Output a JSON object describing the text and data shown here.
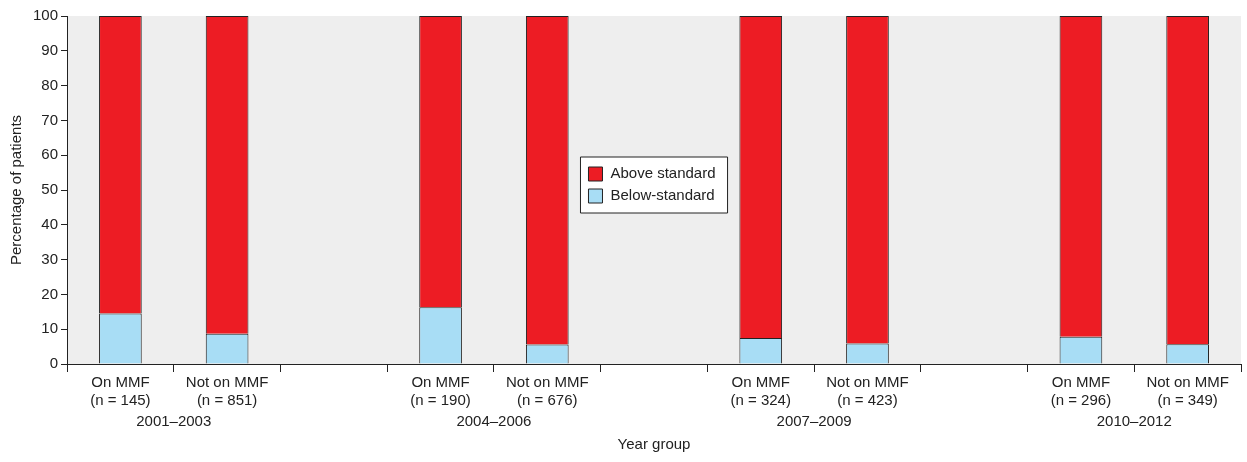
{
  "chart_data": {
    "type": "bar",
    "stacked": true,
    "xlabel": "Year group",
    "ylabel": "Percentage of patients",
    "categories": [
      "On MMF\n(n = 145)",
      "Not on MMF\n(n = 851)",
      null,
      "On MMF\n(n = 190)",
      "Not on MMF\n(n = 676)",
      null,
      "On MMF\n(n = 324)",
      "Not on MMF\n(n = 423)",
      null,
      "On MMF\n(n = 296)",
      "Not on MMF\n(n = 349)"
    ],
    "series": [
      {
        "name": "Below-standard",
        "color": "#a8ddf5",
        "values": [
          14.5,
          8.7,
          null,
          16.3,
          5.6,
          null,
          7.5,
          5.9,
          null,
          7.8,
          5.7
        ]
      },
      {
        "name": "Above standard",
        "color": "#ed1c24",
        "values": [
          85.5,
          91.3,
          null,
          83.7,
          94.4,
          null,
          92.5,
          94.1,
          null,
          92.2,
          94.3
        ]
      }
    ],
    "ylim": [
      0,
      100
    ],
    "yticks": [
      0,
      10,
      20,
      30,
      40,
      50,
      60,
      70,
      80,
      90,
      100
    ],
    "grid": false,
    "legend": "center",
    "annotations": [
      "2001–2003",
      "2004–2006",
      "2007–2009",
      "2010–2012"
    ]
  }
}
